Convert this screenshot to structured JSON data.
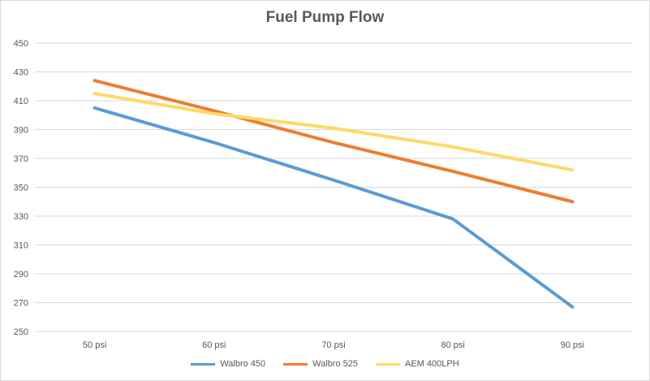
{
  "chart_data": {
    "type": "line",
    "title": "Fuel Pump Flow",
    "xlabel": "",
    "ylabel": "",
    "categories": [
      "50 psi",
      "60 psi",
      "70 psi",
      "80 psi",
      "90 psi"
    ],
    "ylim": [
      250,
      450
    ],
    "yticks": [
      250,
      270,
      290,
      310,
      330,
      350,
      370,
      390,
      410,
      430,
      450
    ],
    "grid": true,
    "legend_position": "bottom",
    "series": [
      {
        "name": "Walbro 450",
        "color": "#5b9bd5",
        "values": [
          405,
          381,
          355,
          328,
          267
        ]
      },
      {
        "name": "Walbro 525",
        "color": "#ed7d31",
        "values": [
          424,
          403,
          381,
          361,
          340
        ]
      },
      {
        "name": "AEM 400LPH",
        "color": "#ffd966",
        "values": [
          415,
          401,
          391,
          378,
          362
        ]
      }
    ]
  }
}
